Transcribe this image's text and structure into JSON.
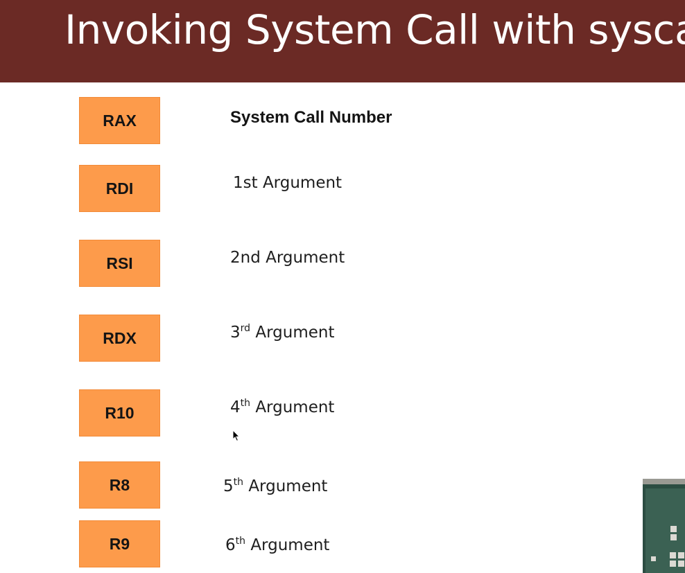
{
  "header": {
    "title": "Invoking System Call with sysca"
  },
  "registers": [
    {
      "name": "RAX",
      "description": "System Call Number",
      "sup": "",
      "suffix": ""
    },
    {
      "name": "RDI",
      "description": "1st Argument",
      "sup": "",
      "suffix": ""
    },
    {
      "name": "RSI",
      "description": "2nd Argument",
      "sup": "",
      "suffix": ""
    },
    {
      "name": "RDX",
      "description": "3",
      "sup": "rd",
      "suffix": " Argument"
    },
    {
      "name": "R10",
      "description": "4",
      "sup": "th",
      "suffix": " Argument"
    },
    {
      "name": "R8",
      "description": "5",
      "sup": "th",
      "suffix": " Argument"
    },
    {
      "name": "R9",
      "description": "6",
      "sup": "th",
      "suffix": " Argument"
    }
  ],
  "colors": {
    "title_bar": "#6b2a25",
    "register_box": "#fd9b4b",
    "title_text": "#ffffff"
  },
  "icons": {
    "cursor": "mouse-pointer-icon"
  }
}
